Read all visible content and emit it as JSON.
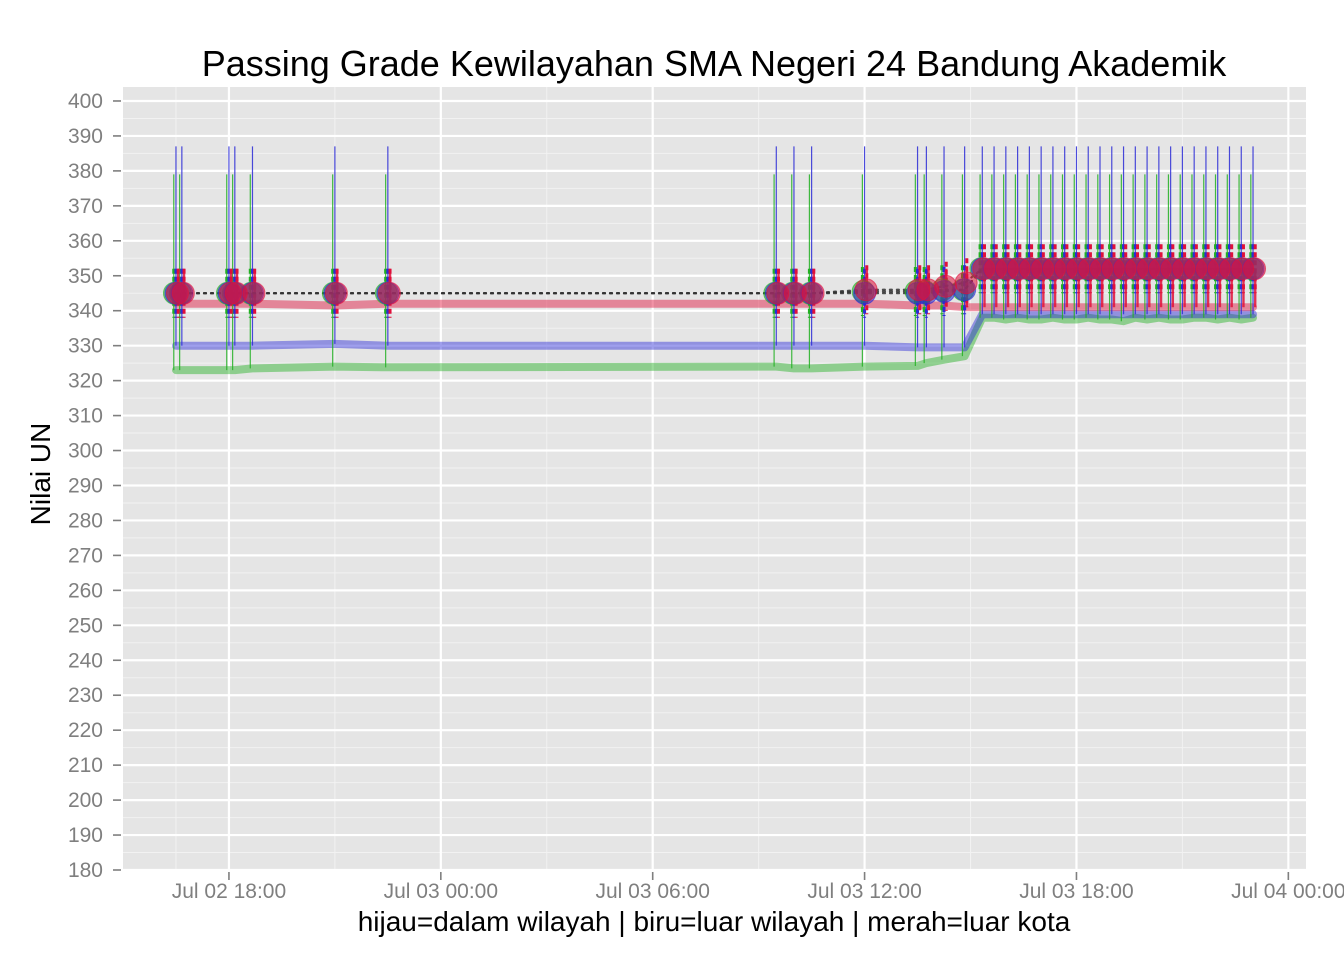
{
  "chart_data": {
    "type": "line",
    "title": "Passing Grade Kewilayahan SMA Negeri 24 Bandung Akademik",
    "xlabel": "hijau=dalam wilayah | biru=luar wilayah | merah=luar kota",
    "ylabel": "Nilai UN",
    "x_axis": {
      "type": "datetime",
      "range": [
        "2014-07-02 15:00",
        "2014-07-04 00:30"
      ],
      "ticks": [
        "2014-07-02 18:00",
        "2014-07-03 00:00",
        "2014-07-03 06:00",
        "2014-07-03 12:00",
        "2014-07-03 18:00",
        "2014-07-04 00:00"
      ],
      "tick_labels": [
        "Jul 02 18:00",
        "Jul 03 00:00",
        "Jul 03 06:00",
        "Jul 03 12:00",
        "Jul 03 18:00",
        "Jul 04 00:00"
      ]
    },
    "y_axis": {
      "range": [
        180,
        404
      ],
      "ticks": [
        180,
        190,
        200,
        210,
        220,
        230,
        240,
        250,
        260,
        270,
        280,
        290,
        300,
        310,
        320,
        330,
        340,
        350,
        360,
        370,
        380,
        390,
        400
      ]
    },
    "grid": true,
    "legend": "none",
    "colors": {
      "dalam_wilayah": "#22b022",
      "luar_wilayah": "#2b2bd6",
      "luar_kota": "#e0103a",
      "panel_background": "#e5e5e5",
      "grid_major": "#ffffff",
      "grid_minor": "#f2f2f2"
    },
    "x": [
      "2014-07-02 16:30",
      "2014-07-02 16:40",
      "2014-07-02 18:00",
      "2014-07-02 18:10",
      "2014-07-02 18:40",
      "2014-07-02 21:00",
      "2014-07-02 22:30",
      "2014-07-03 09:30",
      "2014-07-03 10:00",
      "2014-07-03 10:30",
      "2014-07-03 12:00",
      "2014-07-03 13:30",
      "2014-07-03 13:45",
      "2014-07-03 14:15",
      "2014-07-03 14:50",
      "2014-07-03 15:20",
      "2014-07-03 15:40",
      "2014-07-03 16:00",
      "2014-07-03 16:20",
      "2014-07-03 16:40",
      "2014-07-03 17:00",
      "2014-07-03 17:20",
      "2014-07-03 17:40",
      "2014-07-03 18:00",
      "2014-07-03 18:20",
      "2014-07-03 18:40",
      "2014-07-03 19:00",
      "2014-07-03 19:20",
      "2014-07-03 19:40",
      "2014-07-03 20:00",
      "2014-07-03 20:20",
      "2014-07-03 20:40",
      "2014-07-03 21:00",
      "2014-07-03 21:20",
      "2014-07-03 21:40",
      "2014-07-03 22:00",
      "2014-07-03 22:20",
      "2014-07-03 22:40",
      "2014-07-03 23:00"
    ],
    "series": [
      {
        "name": "dalam wilayah",
        "color": "#22b022",
        "min": [
          323,
          323,
          323,
          323,
          323.5,
          324,
          323.8,
          324,
          323.5,
          323.5,
          324,
          324.2,
          325,
          326,
          327,
          338,
          338,
          337.5,
          338,
          337.5,
          337.5,
          338,
          337.5,
          337.5,
          338,
          337.5,
          337.5,
          337,
          338,
          337.5,
          338,
          337.5,
          337.5,
          338,
          338,
          337.5,
          338,
          337.5,
          338
        ],
        "mean": [
          345,
          345,
          345,
          345,
          345,
          345,
          345,
          345,
          345,
          345,
          345.5,
          345.5,
          345.5,
          346,
          346,
          352,
          352,
          352,
          352,
          352,
          352,
          352,
          352,
          352,
          352,
          352,
          352,
          352,
          352,
          352,
          352,
          352,
          352,
          352,
          352,
          352,
          352,
          352,
          352
        ],
        "max": [
          379,
          379,
          379,
          379,
          379,
          379,
          379,
          379,
          379,
          379,
          379,
          379,
          379,
          379,
          379,
          379,
          379,
          379,
          379,
          379,
          379,
          379,
          379,
          379,
          379,
          379,
          379,
          379,
          379,
          379,
          379,
          379,
          379,
          379,
          379,
          379,
          379,
          379,
          379
        ]
      },
      {
        "name": "luar wilayah",
        "color": "#2b2bd6",
        "min": [
          330,
          330,
          330,
          330,
          330,
          330.5,
          330,
          330,
          330,
          330,
          330,
          329.5,
          329.5,
          329.5,
          329.5,
          339,
          339,
          339,
          339,
          339,
          339,
          339,
          339,
          339,
          339,
          339,
          339,
          339,
          339,
          339,
          339,
          339,
          339,
          339,
          339,
          339,
          339,
          339,
          339
        ],
        "mean": [
          345,
          345,
          345,
          345,
          345,
          345,
          345,
          345,
          345,
          345,
          345,
          345,
          345,
          345.5,
          346,
          352,
          352,
          352,
          352,
          352,
          352,
          352,
          352,
          352,
          352,
          352,
          352,
          352,
          352,
          352,
          352,
          352,
          352,
          352,
          352,
          352,
          352,
          352,
          352
        ],
        "max": [
          387,
          387,
          387,
          387,
          387,
          387,
          387,
          387,
          387,
          387,
          387,
          387,
          387,
          387,
          387,
          387,
          387,
          387,
          387,
          387,
          387,
          387,
          387,
          387,
          387,
          387,
          387,
          387,
          387,
          387,
          387,
          387,
          387,
          387,
          387,
          387,
          387,
          387,
          387
        ]
      },
      {
        "name": "luar kota",
        "color": "#e0103a",
        "min": [
          342,
          342,
          342,
          342,
          342,
          341.5,
          342,
          342,
          342,
          342,
          342,
          341.5,
          341.5,
          341.5,
          341,
          341,
          341,
          341,
          341,
          341,
          341,
          341,
          341,
          341,
          341,
          341,
          341,
          341,
          341,
          341,
          341,
          341,
          341,
          341,
          341,
          341,
          341,
          341,
          341
        ],
        "mean": [
          345,
          345,
          345,
          345,
          345,
          345,
          345,
          345,
          345,
          345,
          346,
          346,
          346,
          347,
          348,
          352,
          352,
          352,
          352,
          352,
          352,
          352,
          352,
          352,
          352,
          352,
          352,
          352,
          352,
          352,
          352,
          352,
          352,
          352,
          352,
          352,
          352,
          352,
          352
        ],
        "max": [
          352,
          352,
          352,
          352,
          352,
          352,
          352,
          352,
          352,
          352,
          352,
          352,
          352,
          352,
          352,
          352,
          352,
          352,
          352,
          352,
          352,
          352,
          352,
          352,
          352,
          352,
          352,
          352,
          352,
          352,
          352,
          352,
          352,
          352,
          352,
          352,
          352,
          352,
          352
        ]
      }
    ]
  }
}
